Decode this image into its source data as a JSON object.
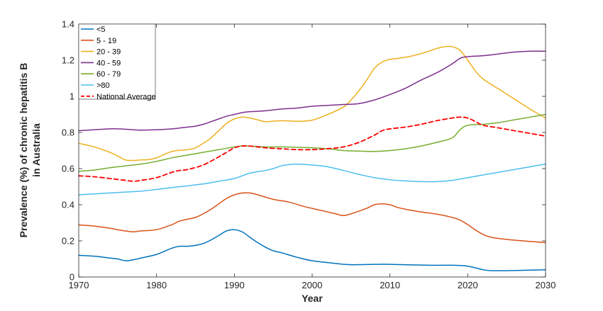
{
  "chart_data": {
    "type": "line",
    "xlabel": "Year",
    "ylabel_lines": [
      "Prevalence (%) of chronic hepatitis B",
      "in Australia"
    ],
    "xlim": [
      1970,
      2030
    ],
    "ylim": [
      0,
      1.4
    ],
    "xticks": [
      1970,
      1980,
      1990,
      2000,
      2010,
      2020,
      2030
    ],
    "yticks": [
      0,
      0.2,
      0.4,
      0.6,
      0.8,
      1,
      1.2,
      1.4
    ],
    "ytick_labels": [
      "0",
      "0.2",
      "0.4",
      "0.6",
      "0.8",
      "1",
      "1.2",
      "1.4"
    ],
    "grid": false,
    "legend_position": "top-left",
    "series": [
      {
        "name": "<5",
        "color": "#0072BD",
        "dash": "solid",
        "x": [
          1970,
          1972,
          1974,
          1975,
          1976,
          1977,
          1978,
          1980,
          1982,
          1983,
          1984,
          1985,
          1986,
          1987,
          1988,
          1989,
          1990,
          1991,
          1992,
          1993,
          1994,
          1995,
          1996,
          1998,
          2000,
          2003,
          2005,
          2008,
          2010,
          2015,
          2018,
          2020,
          2022,
          2023,
          2025,
          2028,
          2030
        ],
        "y": [
          0.12,
          0.115,
          0.105,
          0.1,
          0.09,
          0.095,
          0.105,
          0.125,
          0.16,
          0.17,
          0.17,
          0.175,
          0.185,
          0.205,
          0.23,
          0.255,
          0.262,
          0.25,
          0.22,
          0.19,
          0.165,
          0.145,
          0.135,
          0.11,
          0.09,
          0.075,
          0.068,
          0.07,
          0.07,
          0.065,
          0.065,
          0.06,
          0.04,
          0.035,
          0.035,
          0.038,
          0.04
        ]
      },
      {
        "name": "5 - 19",
        "color": "#D95319",
        "dash": "solid",
        "x": [
          1970,
          1972,
          1974,
          1975,
          1976,
          1977,
          1978,
          1980,
          1982,
          1983,
          1985,
          1986,
          1987,
          1988,
          1989,
          1990,
          1991,
          1992,
          1993,
          1995,
          1997,
          1999,
          2001,
          2003,
          2004,
          2005,
          2007,
          2008,
          2009,
          2010,
          2011,
          2012,
          2014,
          2016,
          2018,
          2019,
          2020,
          2021,
          2022,
          2023,
          2025,
          2028,
          2030
        ],
        "y": [
          0.288,
          0.282,
          0.27,
          0.262,
          0.255,
          0.25,
          0.255,
          0.262,
          0.29,
          0.31,
          0.33,
          0.35,
          0.375,
          0.405,
          0.435,
          0.455,
          0.465,
          0.465,
          0.455,
          0.43,
          0.415,
          0.39,
          0.37,
          0.35,
          0.34,
          0.35,
          0.38,
          0.4,
          0.405,
          0.4,
          0.385,
          0.375,
          0.36,
          0.348,
          0.33,
          0.315,
          0.29,
          0.26,
          0.235,
          0.22,
          0.208,
          0.197,
          0.19
        ]
      },
      {
        "name": "20 - 39",
        "color": "#EDB120",
        "dash": "solid",
        "x": [
          1970,
          1972,
          1974,
          1975,
          1976,
          1977,
          1978,
          1979,
          1980,
          1982,
          1984,
          1985,
          1986,
          1987,
          1988,
          1989,
          1990,
          1991,
          1992,
          1993,
          1994,
          1996,
          1998,
          2000,
          2002,
          2004,
          2005,
          2006,
          2007,
          2008,
          2009,
          2010,
          2011,
          2013,
          2015,
          2016,
          2017,
          2018,
          2019,
          2020,
          2021,
          2022,
          2024,
          2026,
          2028,
          2030
        ],
        "y": [
          0.74,
          0.72,
          0.69,
          0.67,
          0.648,
          0.645,
          0.648,
          0.65,
          0.66,
          0.695,
          0.705,
          0.715,
          0.74,
          0.77,
          0.81,
          0.85,
          0.875,
          0.885,
          0.88,
          0.87,
          0.86,
          0.865,
          0.862,
          0.868,
          0.9,
          0.94,
          0.98,
          1.03,
          1.09,
          1.155,
          1.19,
          1.205,
          1.21,
          1.225,
          1.25,
          1.265,
          1.275,
          1.275,
          1.255,
          1.2,
          1.14,
          1.095,
          1.04,
          0.985,
          0.93,
          0.88
        ]
      },
      {
        "name": "40 - 59",
        "color": "#7E2F8E",
        "dash": "solid",
        "x": [
          1970,
          1972,
          1974,
          1975,
          1976,
          1977,
          1978,
          1980,
          1982,
          1984,
          1985,
          1986,
          1987,
          1988,
          1989,
          1990,
          1991,
          1992,
          1994,
          1996,
          1998,
          2000,
          2002,
          2004,
          2006,
          2008,
          2010,
          2012,
          2014,
          2016,
          2018,
          2019,
          2020,
          2022,
          2024,
          2026,
          2028,
          2030
        ],
        "y": [
          0.81,
          0.815,
          0.82,
          0.82,
          0.818,
          0.815,
          0.813,
          0.815,
          0.82,
          0.83,
          0.835,
          0.845,
          0.86,
          0.875,
          0.89,
          0.9,
          0.91,
          0.915,
          0.92,
          0.93,
          0.935,
          0.945,
          0.95,
          0.955,
          0.96,
          0.98,
          1.01,
          1.045,
          1.09,
          1.13,
          1.18,
          1.21,
          1.22,
          1.225,
          1.235,
          1.245,
          1.25,
          1.25
        ]
      },
      {
        "name": "60 - 79",
        "color": "#77AC30",
        "dash": "solid",
        "x": [
          1970,
          1972,
          1974,
          1976,
          1978,
          1980,
          1982,
          1984,
          1986,
          1988,
          1990,
          1991,
          1992,
          1994,
          1996,
          1998,
          2000,
          2002,
          2004,
          2006,
          2008,
          2010,
          2012,
          2014,
          2016,
          2018,
          2019,
          2020,
          2022,
          2024,
          2026,
          2028,
          2030
        ],
        "y": [
          0.585,
          0.592,
          0.605,
          0.615,
          0.625,
          0.64,
          0.66,
          0.675,
          0.69,
          0.705,
          0.72,
          0.725,
          0.725,
          0.72,
          0.72,
          0.718,
          0.715,
          0.71,
          0.7,
          0.697,
          0.695,
          0.7,
          0.71,
          0.725,
          0.745,
          0.77,
          0.815,
          0.84,
          0.845,
          0.855,
          0.87,
          0.885,
          0.9
        ]
      },
      {
        "name": ">80",
        "color": "#4DBEEE",
        "dash": "solid",
        "x": [
          1970,
          1972,
          1974,
          1976,
          1978,
          1980,
          1982,
          1984,
          1986,
          1988,
          1990,
          1991,
          1992,
          1994,
          1995,
          1996,
          1997,
          1998,
          2000,
          2002,
          2004,
          2006,
          2008,
          2010,
          2012,
          2014,
          2016,
          2018,
          2020,
          2022,
          2024,
          2026,
          2028,
          2030
        ],
        "y": [
          0.455,
          0.46,
          0.465,
          0.47,
          0.475,
          0.485,
          0.495,
          0.505,
          0.515,
          0.53,
          0.545,
          0.56,
          0.575,
          0.59,
          0.6,
          0.615,
          0.622,
          0.625,
          0.62,
          0.61,
          0.59,
          0.568,
          0.55,
          0.538,
          0.532,
          0.528,
          0.528,
          0.535,
          0.55,
          0.565,
          0.58,
          0.595,
          0.61,
          0.625
        ]
      },
      {
        "name": "National Average",
        "color": "#FF0000",
        "dash": "dashed",
        "x": [
          1970,
          1972,
          1974,
          1975,
          1976,
          1977,
          1978,
          1980,
          1982,
          1983,
          1984,
          1986,
          1988,
          1989,
          1990,
          1991,
          1992,
          1994,
          1996,
          1998,
          2000,
          2002,
          2004,
          2006,
          2008,
          2009,
          2010,
          2012,
          2014,
          2016,
          2018,
          2019,
          2020,
          2021,
          2022,
          2024,
          2026,
          2028,
          2030
        ],
        "y": [
          0.56,
          0.555,
          0.545,
          0.54,
          0.535,
          0.53,
          0.535,
          0.55,
          0.58,
          0.59,
          0.595,
          0.62,
          0.665,
          0.69,
          0.715,
          0.725,
          0.725,
          0.715,
          0.71,
          0.705,
          0.705,
          0.71,
          0.72,
          0.745,
          0.785,
          0.81,
          0.82,
          0.83,
          0.845,
          0.865,
          0.88,
          0.885,
          0.88,
          0.86,
          0.84,
          0.825,
          0.81,
          0.795,
          0.78
        ]
      }
    ]
  }
}
